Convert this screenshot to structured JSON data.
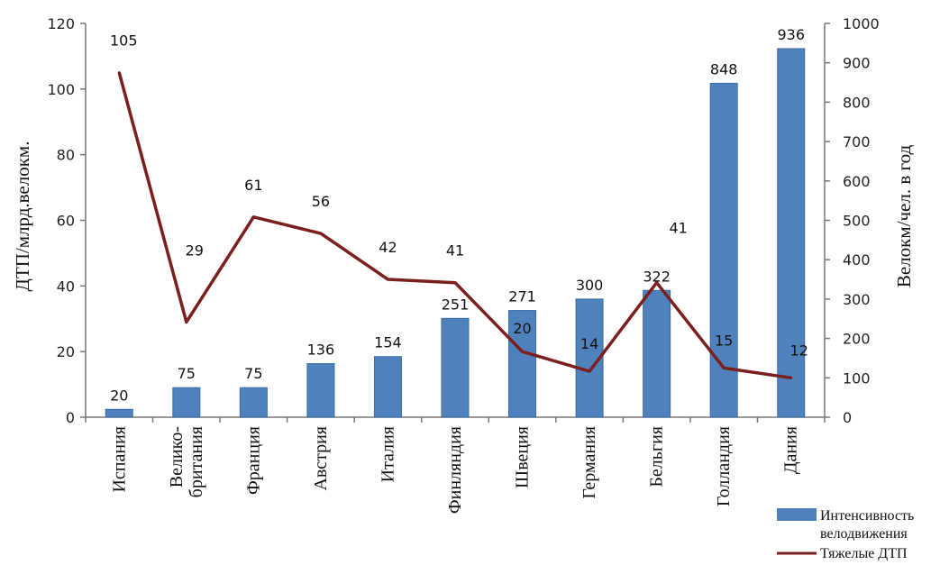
{
  "chart_data": {
    "type": "bar",
    "categories": [
      "Испания",
      "Велико-|британия",
      "Франция",
      "Австрия",
      "Италия",
      "Финляндия",
      "Швеция",
      "Германия",
      "Бельгия",
      "Голландия",
      "Дания"
    ],
    "series": [
      {
        "name": "Интенсивность велодвижения",
        "type": "bar",
        "axis": "right",
        "color": "#4f81bd",
        "values": [
          20,
          75,
          75,
          136,
          154,
          251,
          271,
          300,
          322,
          848,
          936
        ],
        "labels": [
          "20",
          "75",
          "75",
          "136",
          "154",
          "251",
          "271",
          "300",
          "322",
          "848",
          "936"
        ]
      },
      {
        "name": "Тяжелые ДТП",
        "type": "line",
        "axis": "left",
        "color": "#7b1e1e",
        "values": [
          105,
          29,
          61,
          56,
          42,
          41,
          20,
          14,
          41,
          15,
          12
        ],
        "labels": [
          "105",
          "29",
          "61",
          "56",
          "42",
          "41",
          "20",
          "14",
          "41",
          "15",
          "12"
        ]
      }
    ],
    "y_left": {
      "label": "ДТП/млрд.велокм.",
      "ylim": [
        0,
        120
      ],
      "ticks": [
        "0",
        "20",
        "40",
        "60",
        "80",
        "100",
        "120"
      ]
    },
    "y_right": {
      "label": "Велокм/чел. в год",
      "ylim": [
        0,
        1000
      ],
      "ticks": [
        "0",
        "100",
        "200",
        "300",
        "400",
        "500",
        "600",
        "700",
        "800",
        "900",
        "1000"
      ]
    },
    "legend": [
      "Интенсивность|велодвижения",
      "Тяжелые ДТП"
    ],
    "legend_position": "bottom-right",
    "grid": false
  }
}
